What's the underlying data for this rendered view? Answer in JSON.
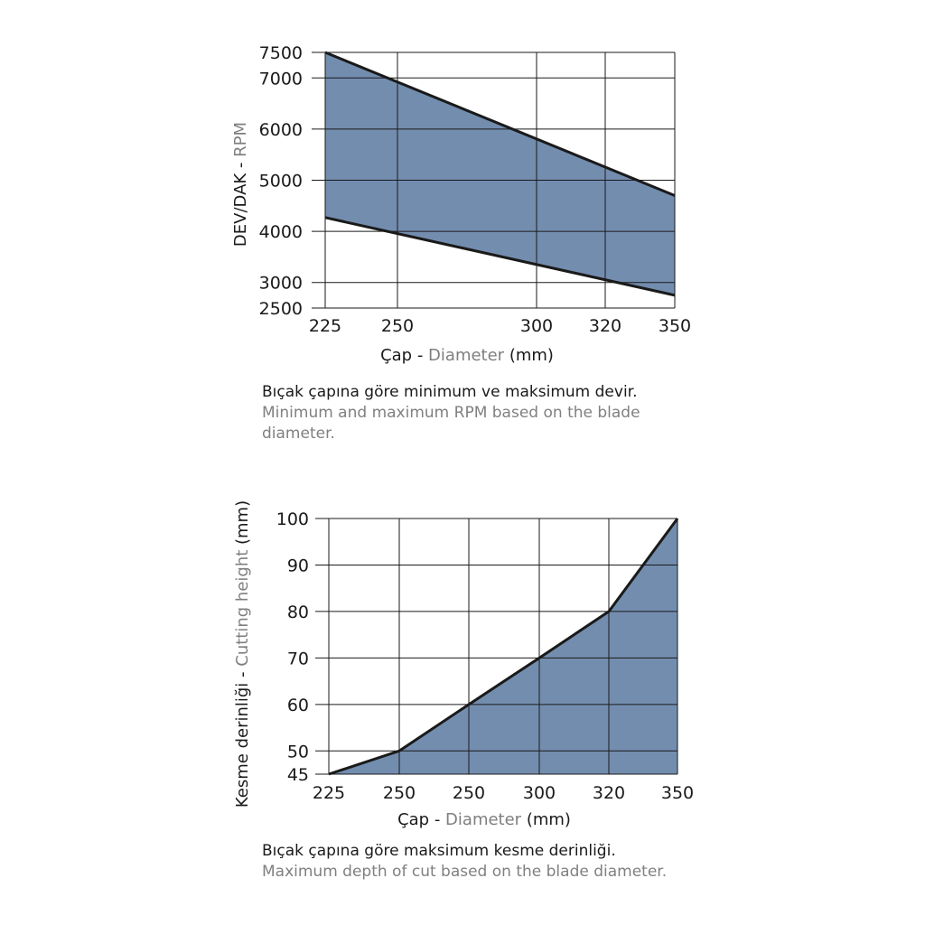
{
  "colors": {
    "fill": "#738daf",
    "line": "#1a1a1a",
    "grid": "#1a1a1a",
    "secondary_text": "#7f7f7f"
  },
  "chart_data": [
    {
      "type": "area",
      "xlabel_tr": "Çap",
      "xlabel_sep": " - ",
      "xlabel_en": "Diameter",
      "xlabel_unit": " (mm)",
      "ylabel_tr": "DEV/DAK",
      "ylabel_sep": " - ",
      "ylabel_en": "RPM",
      "x_ticks": [
        "225",
        "250",
        "300",
        "320",
        "350"
      ],
      "y_ticks": [
        2500,
        3000,
        4000,
        5000,
        6000,
        7000,
        7500
      ],
      "xlim": [
        225,
        350
      ],
      "ylim": [
        2500,
        7500
      ],
      "series": [
        {
          "x": [
            225,
            350
          ],
          "y": [
            7500,
            4700
          ]
        },
        {
          "x": [
            225,
            350
          ],
          "y": [
            4270,
            2750
          ]
        }
      ],
      "caption_tr": "Bıçak çapına göre minimum ve maksimum devir.",
      "caption_en": "Minimum and maximum RPM based on the blade diameter."
    },
    {
      "type": "area",
      "xlabel_tr": "Çap",
      "xlabel_sep": " - ",
      "xlabel_en": "Diameter",
      "xlabel_unit": " (mm)",
      "ylabel_tr": "Kesme derinliği",
      "ylabel_sep": " - ",
      "ylabel_en": "Cutting height",
      "ylabel_unit": " (mm)",
      "x_ticks": [
        "225",
        "250",
        "250",
        "300",
        "320",
        "350"
      ],
      "y_ticks": [
        45,
        50,
        60,
        70,
        80,
        90,
        100
      ],
      "ylim": [
        45,
        100
      ],
      "series": [
        {
          "x_index": [
            0,
            1,
            2,
            3,
            4,
            5
          ],
          "y": [
            45,
            50,
            60,
            70,
            80,
            100
          ]
        }
      ],
      "caption_tr": "Bıçak çapına göre maksimum kesme derinliği.",
      "caption_en": "Maximum depth of cut based on the blade diameter."
    }
  ]
}
